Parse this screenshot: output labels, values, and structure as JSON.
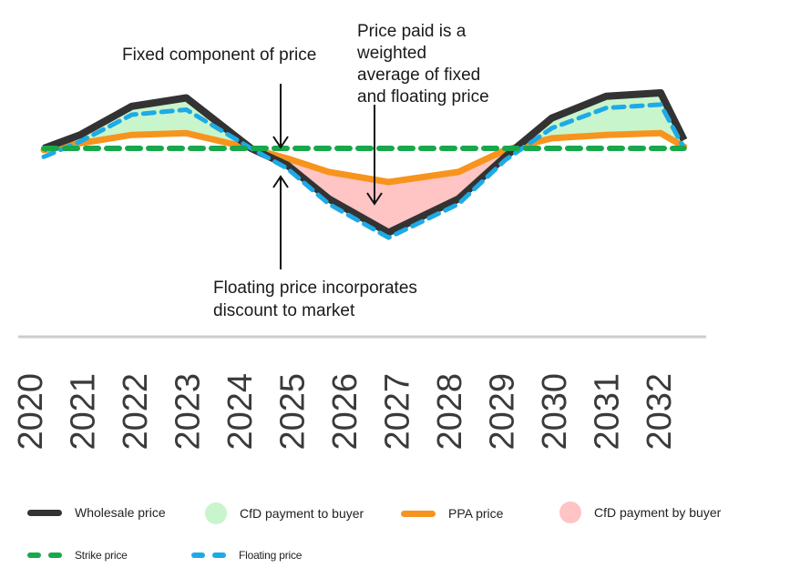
{
  "chart_data": {
    "type": "line",
    "title": "",
    "xlabel": "",
    "ylabel": "",
    "categories": [
      "2020",
      "2021",
      "2022",
      "2023",
      "2024",
      "2025",
      "2026",
      "2027",
      "2028",
      "2029",
      "2030",
      "2031",
      "2032"
    ],
    "x": [
      0,
      0.7,
      1.7,
      2.75,
      4.0,
      4.7,
      5.5,
      6.65,
      8.0,
      8.9,
      9.8,
      10.85,
      11.9,
      12.35
    ],
    "ylim": [
      -6,
      3
    ],
    "grid": false,
    "legend_position": "bottom",
    "colors": {
      "wholesale": "#333333",
      "floating": "#1eaae7",
      "strike": "#17a84a",
      "ppa": "#f7941d",
      "cfd_to_buyer": "#c9f5cc",
      "cfd_by_buyer": "#ffc4c4",
      "axis": "#cccccc"
    },
    "series": [
      {
        "name": "Wholesale price",
        "values": [
          0,
          0.8,
          2.5,
          3.0,
          0,
          -1.0,
          -3.0,
          -5.0,
          -3.0,
          -0.5,
          1.8,
          3.1,
          3.3,
          0.5
        ]
      },
      {
        "name": "Floating price",
        "values": [
          -0.5,
          0.4,
          2.0,
          2.3,
          0,
          -1.2,
          -3.3,
          -5.3,
          -3.3,
          -0.7,
          1.2,
          2.4,
          2.6,
          0
        ]
      },
      {
        "name": "PPA price",
        "values": [
          -0.1,
          0.3,
          0.8,
          0.9,
          0,
          -0.6,
          -1.4,
          -2.0,
          -1.4,
          -0.1,
          0.6,
          0.8,
          0.9,
          0.1
        ]
      },
      {
        "name": "Strike price",
        "values": [
          0,
          0,
          0,
          0,
          0,
          0,
          0,
          0,
          0,
          0,
          0,
          0,
          0,
          0
        ]
      }
    ],
    "annotations": [
      {
        "id": "fixed",
        "text": [
          "Fixed component of price"
        ]
      },
      {
        "id": "weighted",
        "text": [
          "Price paid is a",
          "weighted",
          "average of fixed",
          "and floating price"
        ]
      },
      {
        "id": "discount",
        "text": [
          "Floating price incorporates",
          "discount to market"
        ]
      }
    ],
    "legend": [
      {
        "id": "wholesale",
        "label": "Wholesale price",
        "swatch": "line"
      },
      {
        "id": "cfd_to_buyer",
        "label": "CfD payment to buyer",
        "swatch": "circle"
      },
      {
        "id": "ppa",
        "label": "PPA price",
        "swatch": "line"
      },
      {
        "id": "cfd_by_buyer",
        "label": "CfD payment by buyer",
        "swatch": "circle"
      },
      {
        "id": "strike",
        "label": "Strike price",
        "swatch": "dash"
      },
      {
        "id": "floating",
        "label": "Floating price",
        "swatch": "dash"
      }
    ]
  }
}
